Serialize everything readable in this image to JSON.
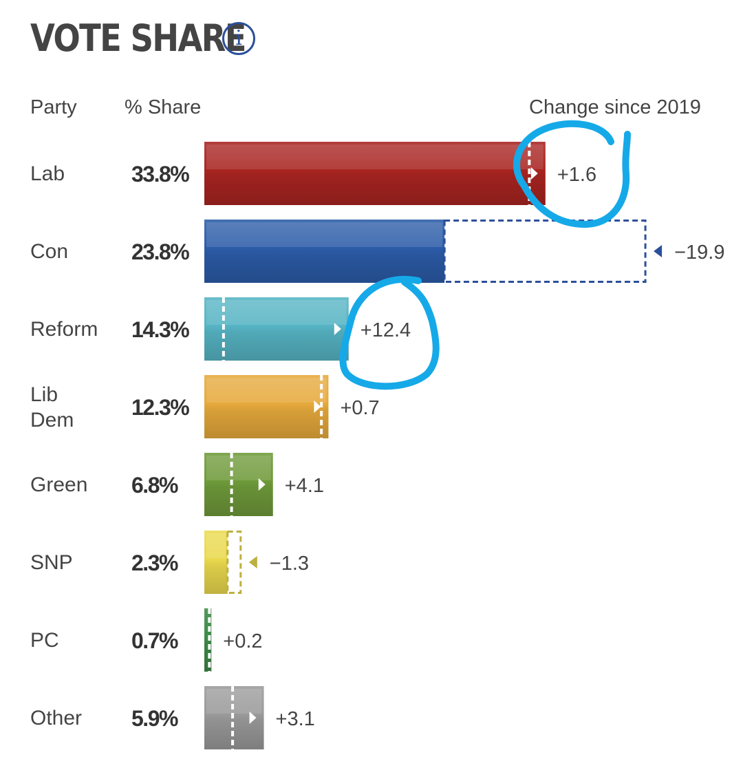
{
  "header": {
    "title": "VOTE SHARE",
    "info_icon": "info-icon",
    "col_party": "Party",
    "col_share": "% Share",
    "col_change": "Change since 2019"
  },
  "chart_data": {
    "type": "bar",
    "orientation": "horizontal",
    "title": "VOTE SHARE",
    "categories": [
      "Lab",
      "Con",
      "Reform",
      "Lib Dem",
      "Green",
      "SNP",
      "PC",
      "Other"
    ],
    "category_display": [
      [
        "Lab"
      ],
      [
        "Con"
      ],
      [
        "Reform"
      ],
      [
        "Lib",
        "Dem"
      ],
      [
        "Green"
      ],
      [
        "SNP"
      ],
      [
        "PC"
      ],
      [
        "Other"
      ]
    ],
    "series": [
      {
        "values": [
          33.8,
          23.8,
          14.3,
          12.3,
          6.8,
          2.3,
          0.7,
          5.9
        ]
      }
    ],
    "share_labels": [
      "33.8%",
      "23.8%",
      "14.3%",
      "12.3%",
      "6.8%",
      "2.3%",
      "0.7%",
      "5.9%"
    ],
    "change_since_2019": [
      1.6,
      -19.9,
      12.4,
      0.7,
      4.1,
      -1.3,
      0.2,
      3.1
    ],
    "change_labels": [
      "+1.6",
      "−19.9",
      "+12.4",
      "+0.7",
      "+4.1",
      "−1.3",
      "+0.2",
      "+3.1"
    ],
    "colors": [
      "#a82421",
      "#2c5ca8",
      "#56b4c4",
      "#e6a93c",
      "#6f9a3a",
      "#ead94e",
      "#3f8a48",
      "#9a9a9a"
    ],
    "marker_colors": [
      "#a82421",
      "#2b4f9a",
      "#56b4c4",
      "#e6a93c",
      "#6f9a3a",
      "#bdb040",
      "#3f8a48",
      "#9a9a9a"
    ],
    "annotation_color": "#16a9e8",
    "annotations": [
      "circle around Lab change",
      "circle around Reform change"
    ],
    "xlim": [
      0,
      45
    ],
    "grid": false,
    "legend": "none"
  }
}
